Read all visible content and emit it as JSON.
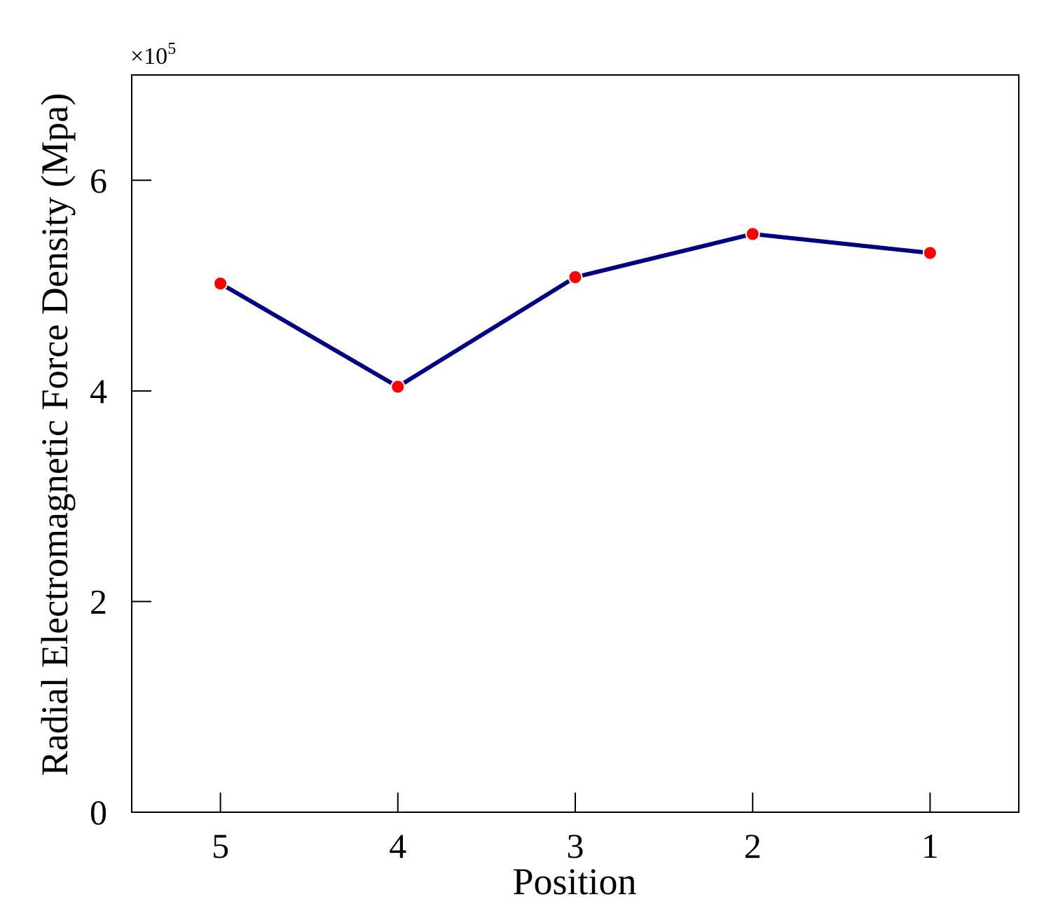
{
  "chart_data": {
    "type": "line",
    "title": "",
    "xlabel": "Position",
    "ylabel": "Radial Electromagnetic Force Density (Mpa)",
    "y_scale_label": "×10",
    "y_scale_exponent": "5",
    "categories": [
      "5",
      "4",
      "3",
      "2",
      "1"
    ],
    "x_tick_labels": [
      "5",
      "4",
      "3",
      "2",
      "1"
    ],
    "y_ticks": [
      0,
      2,
      4,
      6
    ],
    "y_tick_labels": [
      "0",
      "2",
      "4",
      "6"
    ],
    "ylim": [
      0,
      7.0
    ],
    "xlim": [
      0.5,
      5.5
    ],
    "grid": false,
    "legend": "none",
    "series": [
      {
        "values": [
          5.02,
          4.04,
          5.08,
          5.49,
          5.31
        ],
        "line_color": "#000080",
        "marker_color": "#ff0000"
      }
    ]
  }
}
